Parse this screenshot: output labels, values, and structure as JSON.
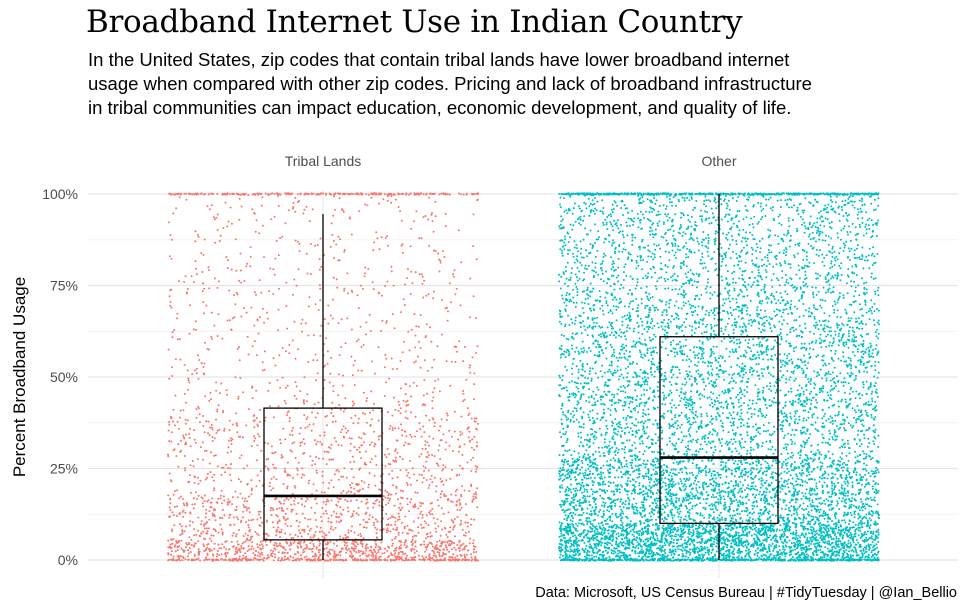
{
  "title": "Broadband Internet Use in Indian Country",
  "subtitle_lines": [
    "In the United States, zip codes that contain tribal lands have lower broadband internet",
    " usage when compared with other zip codes. Pricing and lack of broadband infrastructure",
    " in tribal communities can impact education, economic development, and quality of life."
  ],
  "caption": "Data: Microsoft, US Census Bureau | #TidyTuesday | @Ian_Bellio",
  "chart_data": {
    "type": "boxplot-jitter",
    "ylabel": "Percent Broadband Usage",
    "ylim": [
      0,
      1
    ],
    "y_ticks": [
      0,
      0.25,
      0.5,
      0.75,
      1
    ],
    "y_tick_labels": [
      "0%",
      "25%",
      "50%",
      "75%",
      "100%"
    ],
    "grid": true,
    "legend": "none",
    "groups": [
      {
        "label": "Tribal Lands",
        "color": "#F8766D",
        "box": {
          "whisker_low": 0.0,
          "q1": 0.055,
          "median": 0.175,
          "q3": 0.415,
          "whisker_high": 0.945
        }
      },
      {
        "label": "Other",
        "color": "#00BFC4",
        "box": {
          "whisker_low": 0.0,
          "q1": 0.1,
          "median": 0.28,
          "q3": 0.61,
          "whisker_high": 1.0
        }
      }
    ]
  }
}
